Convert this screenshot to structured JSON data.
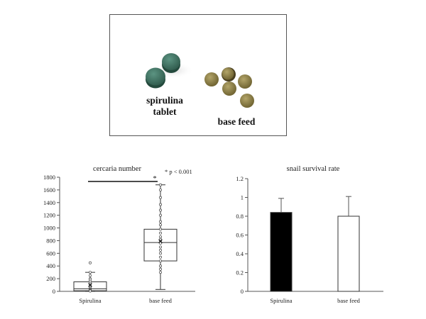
{
  "photo": {
    "label_spirulina_line1": "spirulina",
    "label_spirulina_line2": "tablet",
    "label_base_feed": "base feed",
    "tablet_color": "#3f7362",
    "feed_color": "#8a7d45"
  },
  "chart_data": [
    {
      "type": "box",
      "title": "cercaria number",
      "annotation": "* p < 0.001",
      "significance_marker": "*",
      "categories": [
        "Spirulina",
        "base feed"
      ],
      "ylim": [
        0,
        1800
      ],
      "yticks": [
        0,
        200,
        400,
        600,
        800,
        1000,
        1200,
        1400,
        1600,
        1800
      ],
      "boxes": [
        {
          "category": "Spirulina",
          "whisker_low": 0,
          "q1": 10,
          "median": 40,
          "q3": 150,
          "whisker_high": 300,
          "mean": 100,
          "points": [
            450,
            300,
            250,
            200,
            180,
            150,
            120,
            100,
            80,
            60,
            40,
            30,
            20,
            10,
            5
          ]
        },
        {
          "category": "base feed",
          "whisker_low": 30,
          "q1": 480,
          "median": 770,
          "q3": 980,
          "whisker_high": 1680,
          "mean": 790,
          "points": [
            1680,
            1600,
            1480,
            1370,
            1280,
            1200,
            1100,
            1050,
            980,
            920,
            860,
            820,
            790,
            760,
            700,
            650,
            600,
            540,
            480,
            400,
            350,
            300
          ]
        }
      ],
      "box_color": "#ffffff",
      "stroke_color": "#333333"
    },
    {
      "type": "bar",
      "title": "snail survival rate",
      "categories": [
        "Spirulina",
        "base feed"
      ],
      "values": [
        0.84,
        0.8
      ],
      "errors": [
        0.15,
        0.21
      ],
      "ylim": [
        0,
        1.2
      ],
      "yticks": [
        0,
        0.2,
        0.4,
        0.6,
        0.8,
        1,
        1.2
      ],
      "bar_colors": [
        "#000000",
        "#ffffff"
      ],
      "stroke_color": "#333333"
    }
  ]
}
